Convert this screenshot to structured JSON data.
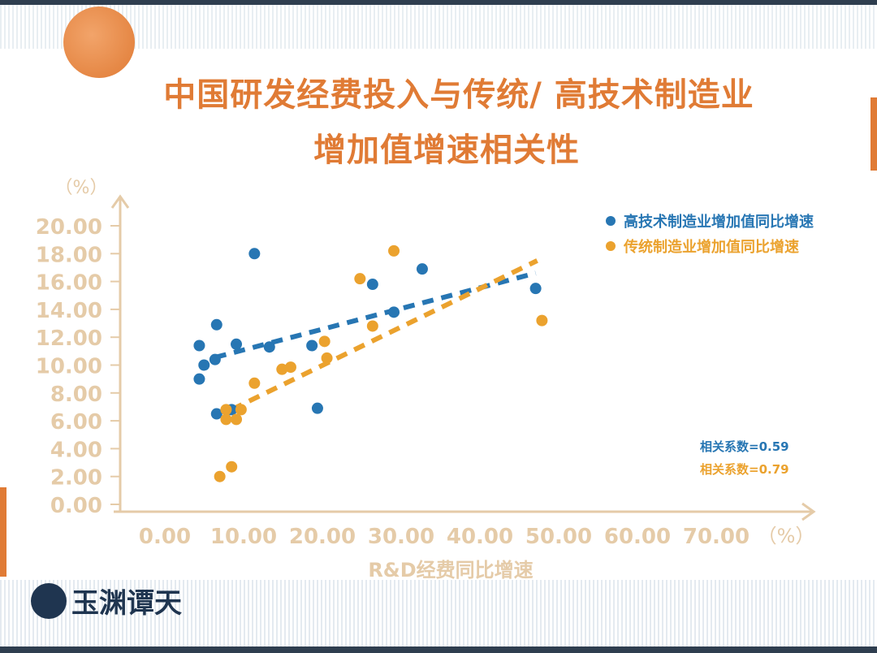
{
  "title_line1": "中国研发经费投入与传统/ 高技术制造业",
  "title_line2": "增加值增速相关性",
  "logo_text": "玉渊谭天",
  "chart_data": {
    "type": "scatter",
    "title": "中国研发经费投入与传统/ 高技术制造业增加值增速相关性",
    "xlabel": "R&D经费同比增速",
    "x_unit": "（%）",
    "y_unit": "（%）",
    "xlim": [
      0,
      70
    ],
    "ylim": [
      0,
      20
    ],
    "x_ticks": [
      "0.00",
      "10.00",
      "20.00",
      "30.00",
      "40.00",
      "50.00",
      "60.00",
      "70.00"
    ],
    "y_ticks": [
      "0.00",
      "2.00",
      "4.00",
      "6.00",
      "8.00",
      "10.00",
      "12.00",
      "14.00",
      "16.00",
      "18.00",
      "20.00"
    ],
    "grid": false,
    "legend_position": "top-right",
    "series": [
      {
        "name": "高技术制造业增加值同比增速",
        "color": "#2776b3",
        "points": [
          [
            12.2,
            18.0
          ],
          [
            5.2,
            11.4
          ],
          [
            7.4,
            12.9
          ],
          [
            9.9,
            11.5
          ],
          [
            5.8,
            10.0
          ],
          [
            7.2,
            10.4
          ],
          [
            5.2,
            9.0
          ],
          [
            14.1,
            11.3
          ],
          [
            19.5,
            11.4
          ],
          [
            20.2,
            6.9
          ],
          [
            7.4,
            6.5
          ],
          [
            9.3,
            6.8
          ],
          [
            27.2,
            15.8
          ],
          [
            29.9,
            13.8
          ],
          [
            33.5,
            16.9
          ],
          [
            47.9,
            15.5
          ]
        ],
        "trendline": [
          [
            7.2,
            10.55
          ],
          [
            47.9,
            16.6
          ]
        ],
        "correlation_label": "相关系数=0.59"
      },
      {
        "name": "传统制造业增加值同比增速",
        "color": "#eba22e",
        "points": [
          [
            25.6,
            16.2
          ],
          [
            29.9,
            18.2
          ],
          [
            21.1,
            11.7
          ],
          [
            21.4,
            10.5
          ],
          [
            27.2,
            12.8
          ],
          [
            15.7,
            9.7
          ],
          [
            16.8,
            9.85
          ],
          [
            12.2,
            8.7
          ],
          [
            8.6,
            6.8
          ],
          [
            8.6,
            6.1
          ],
          [
            9.9,
            6.1
          ],
          [
            10.5,
            6.8
          ],
          [
            9.3,
            2.7
          ],
          [
            7.8,
            2.0
          ],
          [
            48.7,
            13.2
          ]
        ],
        "trendline": [
          [
            9.3,
            6.8
          ],
          [
            48.1,
            17.5
          ]
        ],
        "correlation_label": "相关系数=0.79"
      }
    ],
    "axis_color": "#e5cba8"
  }
}
